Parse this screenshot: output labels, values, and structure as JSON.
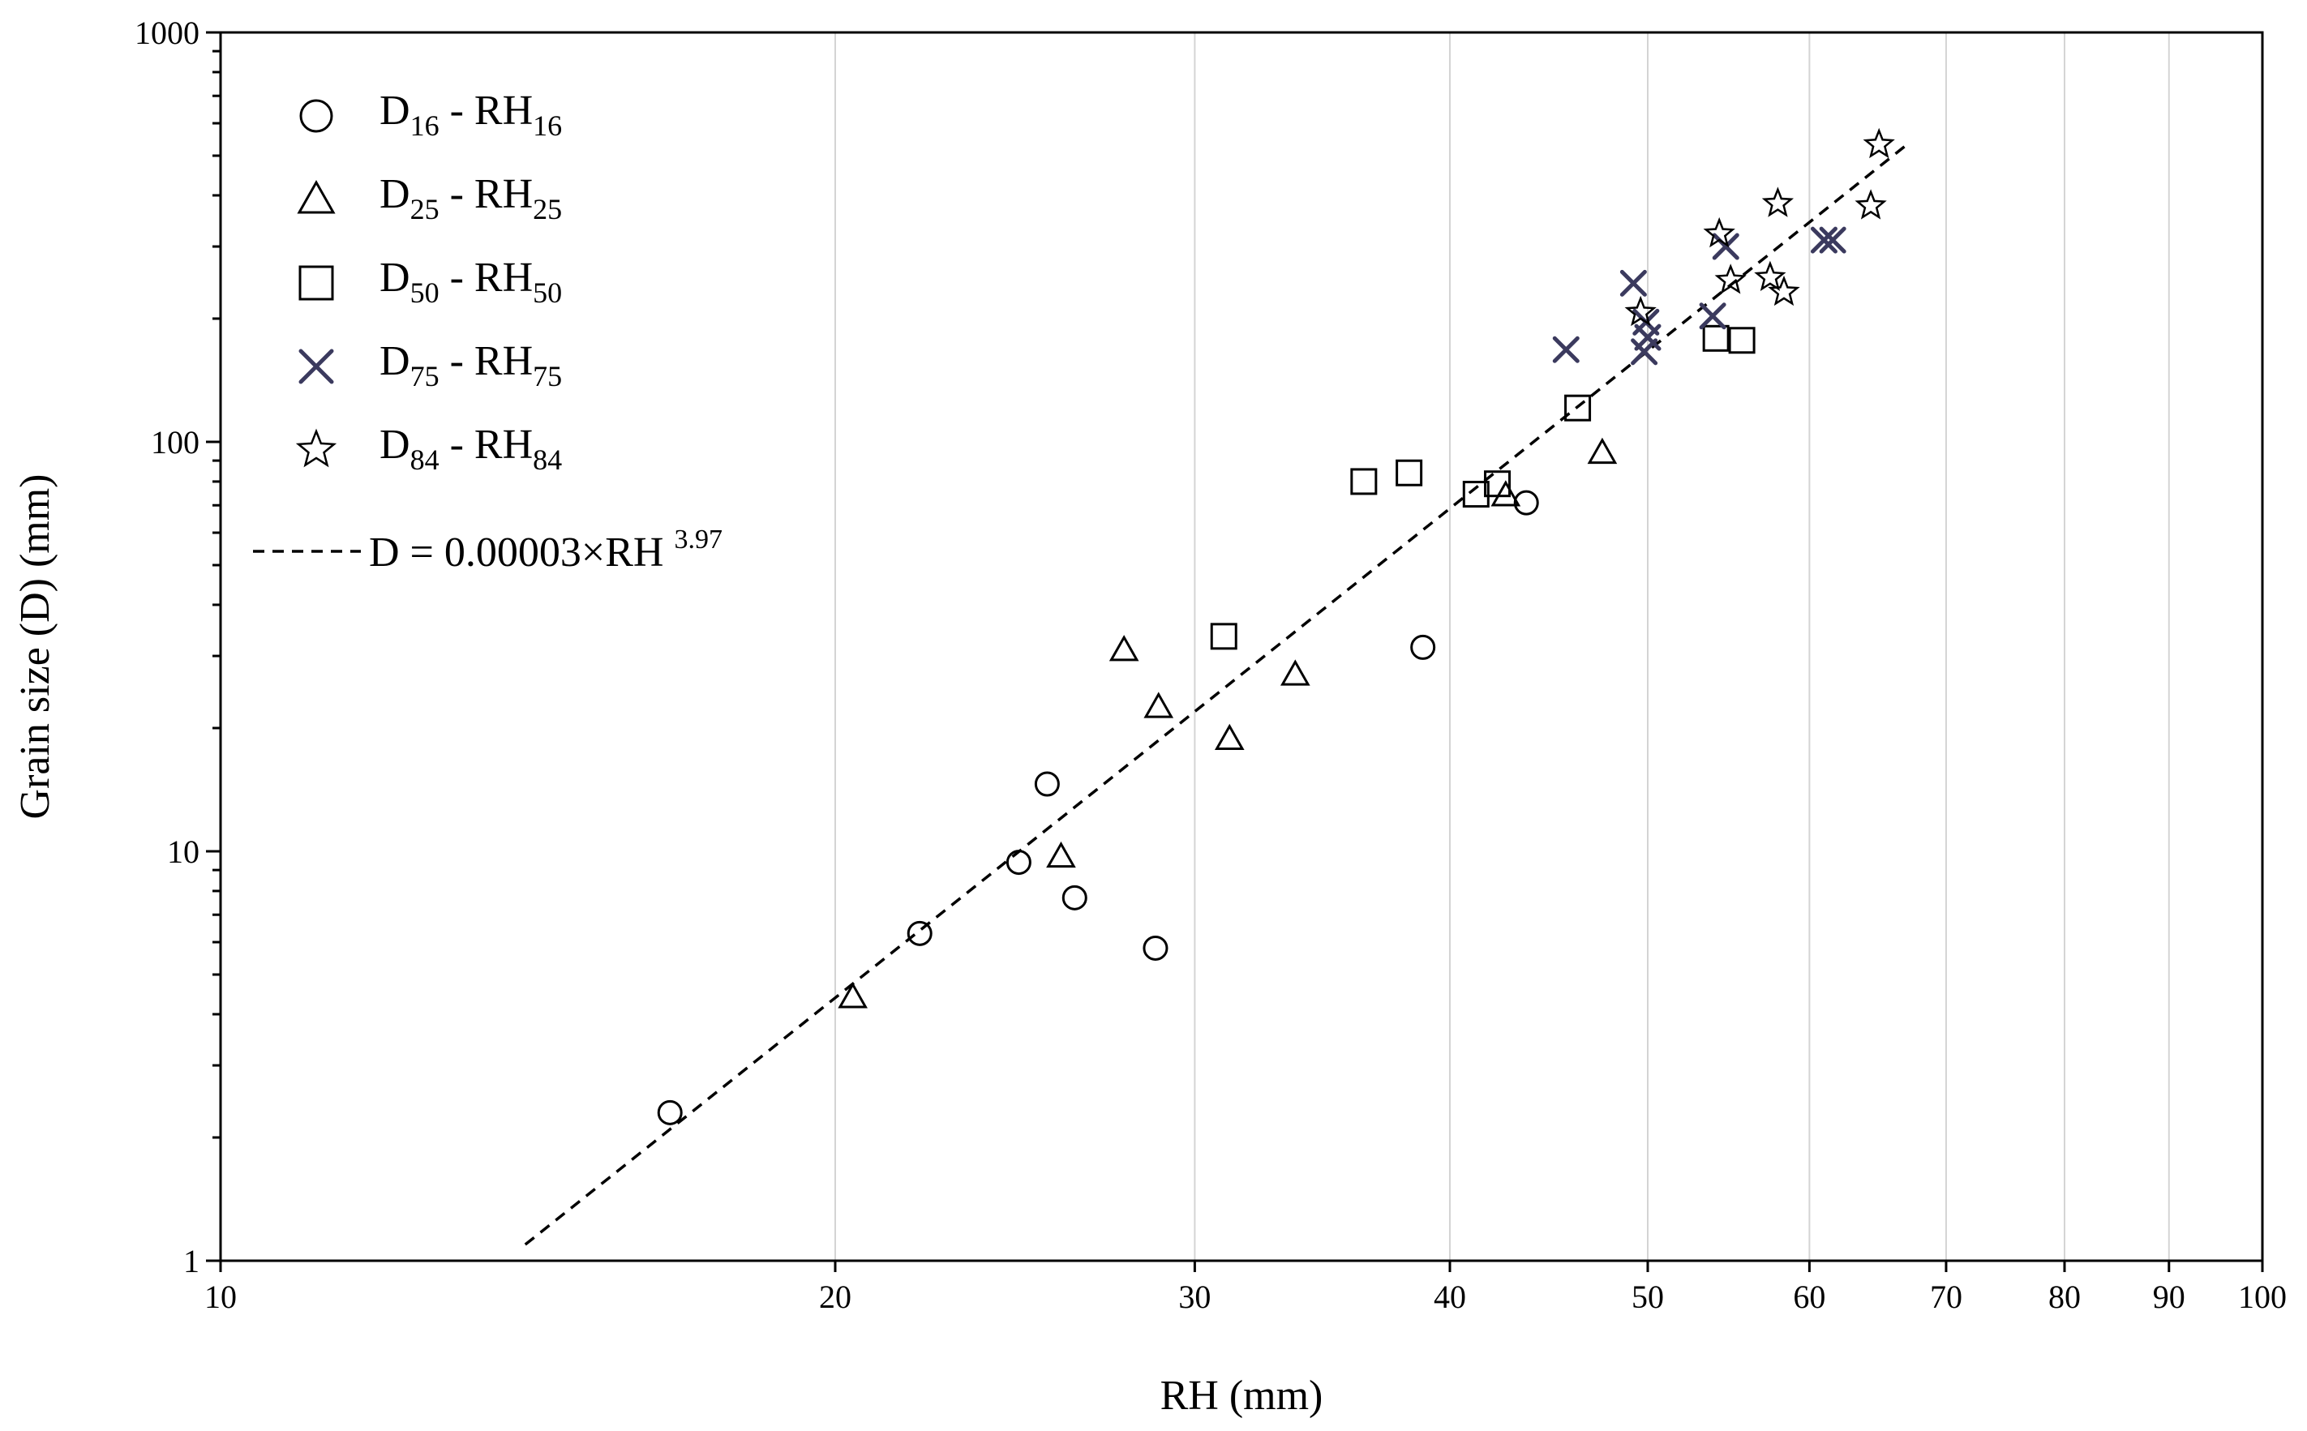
{
  "chart_data": {
    "type": "scatter",
    "xscale": "log",
    "yscale": "log",
    "xlabel": "RH (mm)",
    "ylabel": "Grain size (D) (mm)",
    "xlim": [
      10,
      100
    ],
    "ylim": [
      1,
      1000
    ],
    "x_ticks": [
      10,
      20,
      30,
      40,
      50,
      60,
      70,
      80,
      90,
      100
    ],
    "x_tick_labels": [
      "10",
      "20",
      "30",
      "40",
      "50",
      "60",
      "70",
      "80",
      "90",
      "100"
    ],
    "y_ticks": [
      1,
      10,
      100,
      1000
    ],
    "y_tick_labels": [
      "1",
      "10",
      "100",
      "1000"
    ],
    "vertical_gridlines": [
      20,
      30,
      40,
      50,
      60,
      70,
      80,
      90
    ],
    "series": [
      {
        "name": "D16 - RH16",
        "label": {
          "main": "D",
          "sub": "16",
          "mid": " - RH",
          "sub2": "16"
        },
        "marker": "circle",
        "color": "#000000",
        "points": [
          [
            16.6,
            2.3
          ],
          [
            22.0,
            6.3
          ],
          [
            24.6,
            9.4
          ],
          [
            25.4,
            14.6
          ],
          [
            26.2,
            7.7
          ],
          [
            28.7,
            5.8
          ],
          [
            38.8,
            31.5
          ],
          [
            43.6,
            71.0
          ]
        ]
      },
      {
        "name": "D25 - RH25",
        "label": {
          "main": "D",
          "sub": "25",
          "mid": " - RH",
          "sub2": "25"
        },
        "marker": "triangle",
        "color": "#000000",
        "points": [
          [
            20.4,
            4.4
          ],
          [
            25.8,
            9.7
          ],
          [
            27.7,
            31.0
          ],
          [
            28.8,
            22.5
          ],
          [
            31.2,
            18.8
          ],
          [
            33.6,
            27.0
          ],
          [
            42.6,
            74.0
          ],
          [
            47.5,
            94.0
          ]
        ]
      },
      {
        "name": "D50 - RH50",
        "label": {
          "main": "D",
          "sub": "50",
          "mid": " - RH",
          "sub2": "50"
        },
        "marker": "square",
        "color": "#000000",
        "points": [
          [
            31.0,
            33.5
          ],
          [
            36.3,
            80.0
          ],
          [
            38.2,
            84.0
          ],
          [
            41.2,
            74.5
          ],
          [
            42.2,
            79.0
          ],
          [
            46.2,
            121.0
          ],
          [
            54.0,
            179.0
          ],
          [
            55.6,
            177.0
          ]
        ]
      },
      {
        "name": "D75 - RH75",
        "label": {
          "main": "D",
          "sub": "75",
          "mid": " - RH",
          "sub2": "75"
        },
        "marker": "cross",
        "color": "#3b3a5e",
        "points": [
          [
            45.6,
            168.0
          ],
          [
            49.2,
            244.0
          ],
          [
            49.9,
            196.0
          ],
          [
            50.0,
            180.0
          ],
          [
            49.8,
            166.0
          ],
          [
            53.8,
            203.0
          ],
          [
            54.6,
            300.0
          ],
          [
            61.0,
            311.0
          ],
          [
            61.6,
            311.0
          ]
        ]
      },
      {
        "name": "D84 - RH84",
        "label": {
          "main": "D",
          "sub": "84",
          "mid": " - RH",
          "sub2": "84"
        },
        "marker": "star",
        "color": "#000000",
        "points": [
          [
            49.6,
            207.0
          ],
          [
            54.2,
            322.0
          ],
          [
            54.9,
            248.0
          ],
          [
            57.4,
            252.0
          ],
          [
            57.9,
            382.0
          ],
          [
            58.3,
            232.0
          ],
          [
            64.3,
            377.0
          ],
          [
            64.9,
            532.0
          ]
        ]
      }
    ],
    "fit_line": {
      "label_prefix": "D = 0.00003×RH",
      "label_exponent": "3.97",
      "coefficient": 3e-05,
      "exponent": 3.97,
      "x_start": 14.1,
      "x_end": 67.0,
      "style": "dashed",
      "color": "#000000"
    },
    "legend_position": "top-left"
  }
}
